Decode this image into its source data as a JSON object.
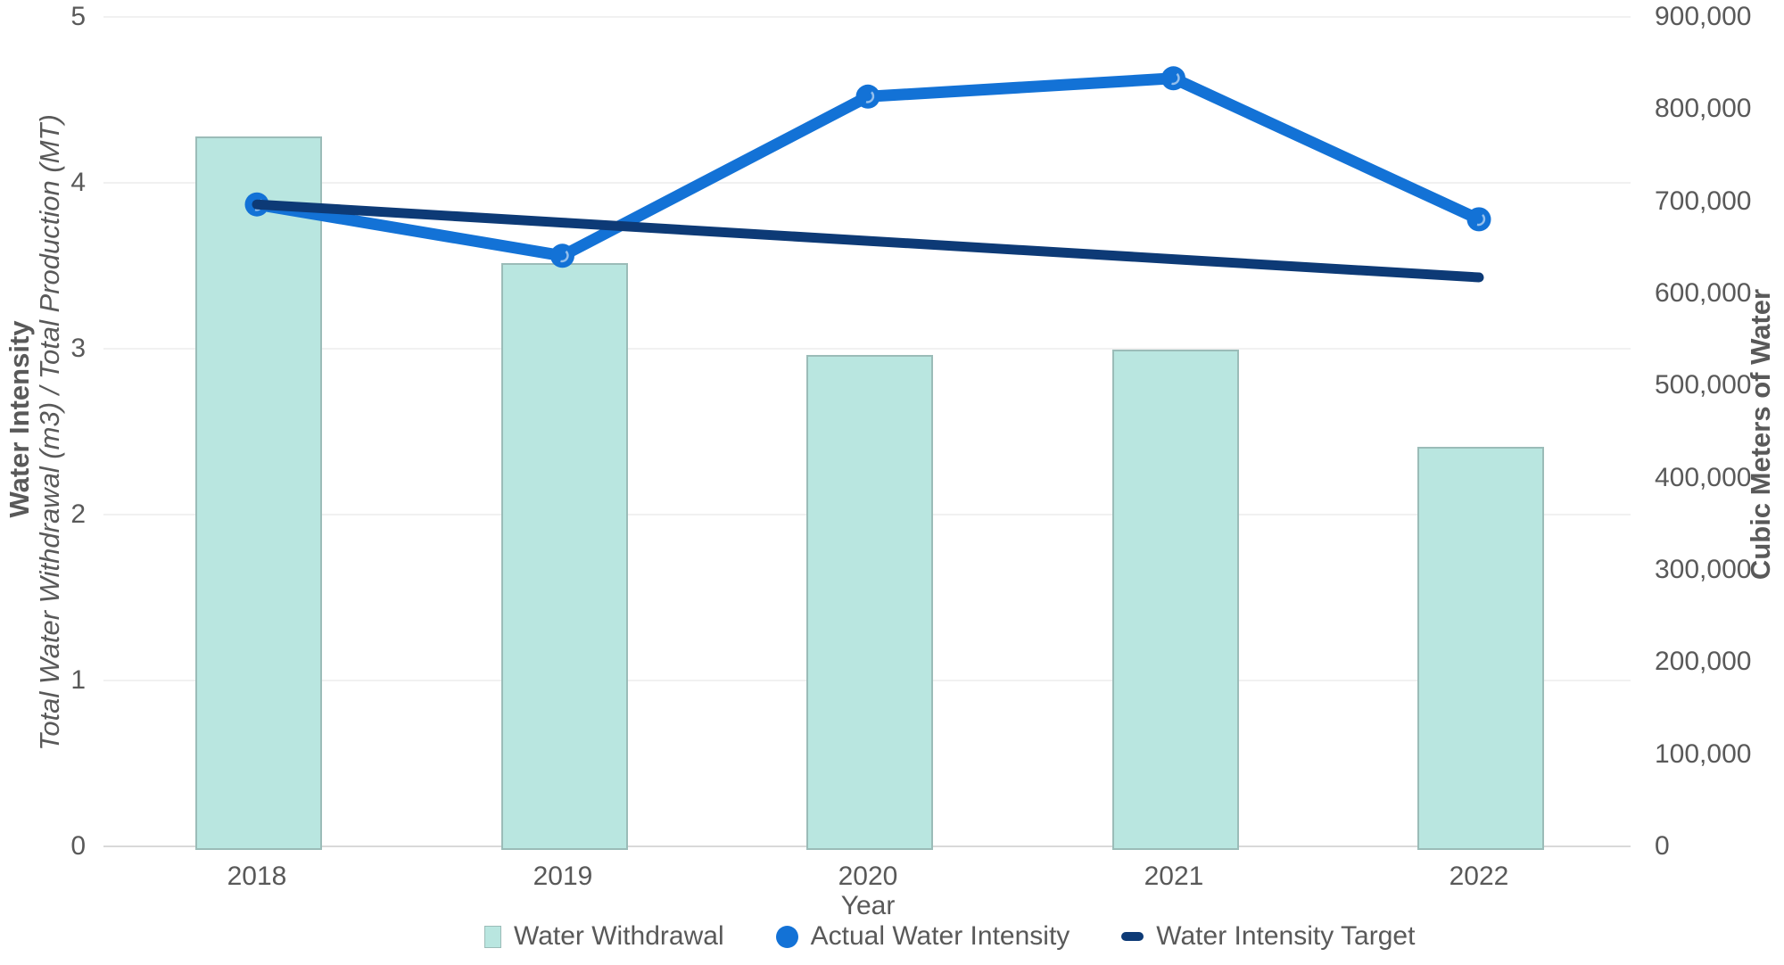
{
  "chart_data": {
    "type": "combo-bar-line",
    "x": [
      "2018",
      "2019",
      "2020",
      "2021",
      "2022"
    ],
    "xlabel": "Year",
    "left_axis": {
      "title_bold": "Water Intensity",
      "title_italic": "Total Water Withdrawal (m3) / Total Production (MT)",
      "ticks": [
        "0",
        "1",
        "2",
        "3",
        "4",
        "5"
      ],
      "tick_values": [
        0,
        1,
        2,
        3,
        4,
        5
      ],
      "range": [
        0,
        5
      ]
    },
    "right_axis": {
      "title": "Cubic Meters of Water",
      "ticks": [
        "0",
        "100,000",
        "200,000",
        "300,000",
        "400,000",
        "500,000",
        "600,000",
        "700,000",
        "800,000",
        "900,000"
      ],
      "tick_values": [
        0,
        100000,
        200000,
        300000,
        400000,
        500000,
        600000,
        700000,
        800000,
        900000
      ],
      "range": [
        0,
        900000
      ]
    },
    "series": [
      {
        "name": "Water Withdrawal",
        "type": "bar",
        "axis": "right",
        "color": "#b9e6e0",
        "values": [
          770000,
          633000,
          533000,
          539000,
          434000
        ]
      },
      {
        "name": "Actual Water Intensity",
        "type": "line",
        "axis": "left",
        "color": "#1372d6",
        "markers": true,
        "values": [
          3.87,
          3.56,
          4.52,
          4.63,
          3.78
        ]
      },
      {
        "name": "Water Intensity Target",
        "type": "line",
        "axis": "left",
        "color": "#0d3a76",
        "markers": false,
        "values": [
          3.87,
          3.76,
          3.65,
          3.54,
          3.43
        ]
      }
    ],
    "legend_position": "bottom",
    "grid": "horizontal-left-ticks"
  },
  "colors": {
    "bar_fill": "#b9e6e0",
    "bar_edge": "#9bbcb8",
    "actual_line": "#1372d6",
    "target_line": "#0d3a76",
    "axis_text": "#595959",
    "gridline": "#f1f1f1",
    "baseline": "#d9d9d9",
    "background": "#ffffff"
  }
}
